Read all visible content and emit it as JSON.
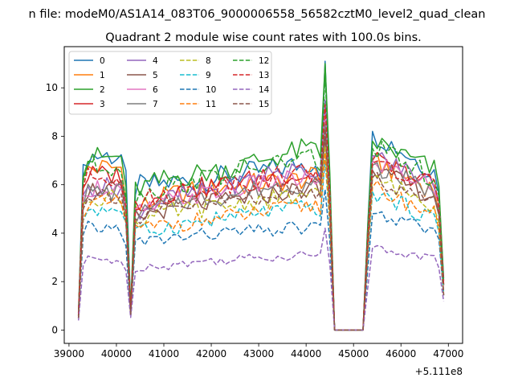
{
  "chart_data": {
    "type": "line",
    "suptitle": "n file: modeM0/AS1A14_083T06_9000006558_56582cztM0_level2_quad_clean",
    "title": "Quadrant 2 module wise count rates with 100.0s bins.",
    "xlabel": "",
    "ylabel": "",
    "x_offset_label": "+5.111e8",
    "xlim": [
      38900,
      47300
    ],
    "ylim": [
      -0.55,
      11.7
    ],
    "x_ticks": [
      39000,
      40000,
      41000,
      42000,
      43000,
      44000,
      45000,
      46000,
      47000
    ],
    "y_ticks": [
      0,
      2,
      4,
      6,
      8,
      10
    ],
    "grid": false,
    "legend": {
      "placement": "top-left",
      "columns": 4
    },
    "series": [
      {
        "name": "0",
        "color": "#1f77b4",
        "dash": "solid",
        "base": [
          0.7,
          7.2,
          5.9,
          6.1,
          6.3,
          6.6,
          7.0,
          11.1,
          0,
          8.2,
          6.4
        ]
      },
      {
        "name": "1",
        "color": "#ff7f0e",
        "dash": "solid",
        "base": [
          0.6,
          6.7,
          5.0,
          5.6,
          5.9,
          6.1,
          6.3,
          9.2,
          0,
          7.0,
          5.7
        ]
      },
      {
        "name": "2",
        "color": "#2ca02c",
        "dash": "solid",
        "base": [
          0.7,
          7.1,
          5.8,
          6.3,
          6.6,
          7.1,
          7.6,
          11.0,
          0,
          7.8,
          6.5
        ]
      },
      {
        "name": "3",
        "color": "#d62728",
        "dash": "solid",
        "base": [
          0.6,
          6.4,
          5.2,
          5.7,
          6.0,
          6.3,
          6.4,
          9.0,
          0,
          7.0,
          5.9
        ]
      },
      {
        "name": "4",
        "color": "#9467bd",
        "dash": "solid",
        "base": [
          0.5,
          5.9,
          4.9,
          5.5,
          5.8,
          6.5,
          6.6,
          9.5,
          0,
          7.2,
          6.0
        ]
      },
      {
        "name": "5",
        "color": "#8c564b",
        "dash": "solid",
        "base": [
          0.6,
          5.8,
          4.6,
          5.1,
          5.3,
          5.6,
          5.9,
          8.0,
          0,
          6.6,
          5.4
        ]
      },
      {
        "name": "6",
        "color": "#e377c2",
        "dash": "solid",
        "base": [
          0.6,
          5.9,
          4.8,
          5.4,
          5.7,
          6.1,
          6.3,
          8.9,
          0,
          7.0,
          5.8
        ]
      },
      {
        "name": "7",
        "color": "#7f7f7f",
        "dash": "solid",
        "base": [
          0.5,
          5.7,
          4.7,
          5.3,
          5.5,
          5.9,
          6.1,
          8.5,
          0,
          6.8,
          5.6
        ]
      },
      {
        "name": "8",
        "color": "#bcbd22",
        "dash": "dashed",
        "base": [
          0.5,
          5.5,
          4.5,
          4.9,
          5.1,
          5.4,
          5.6,
          7.6,
          0,
          6.3,
          5.1
        ]
      },
      {
        "name": "9",
        "color": "#17becf",
        "dash": "dashed",
        "base": [
          0.5,
          5.0,
          4.0,
          4.3,
          4.6,
          4.9,
          5.1,
          7.0,
          0,
          5.7,
          4.5
        ]
      },
      {
        "name": "10",
        "color": "#1f77b4",
        "dash": "dashed",
        "base": [
          0.5,
          4.2,
          3.6,
          3.8,
          4.0,
          4.1,
          4.3,
          5.8,
          0,
          4.8,
          4.0
        ]
      },
      {
        "name": "11",
        "color": "#ff7f0e",
        "dash": "dashed",
        "base": [
          0.5,
          5.2,
          4.1,
          4.4,
          4.6,
          4.9,
          5.2,
          7.3,
          0,
          5.9,
          4.7
        ]
      },
      {
        "name": "12",
        "color": "#2ca02c",
        "dash": "dashed",
        "base": [
          0.6,
          6.8,
          5.6,
          6.0,
          6.4,
          6.8,
          7.2,
          10.5,
          0,
          7.5,
          6.2
        ]
      },
      {
        "name": "13",
        "color": "#d62728",
        "dash": "dashed",
        "base": [
          0.6,
          6.3,
          5.2,
          5.7,
          6.0,
          6.3,
          6.6,
          9.3,
          0,
          6.9,
          5.8
        ]
      },
      {
        "name": "14",
        "color": "#9467bd",
        "dash": "dashed",
        "base": [
          0.4,
          2.9,
          2.6,
          2.7,
          2.9,
          3.0,
          3.2,
          4.2,
          0,
          3.4,
          2.9
        ]
      },
      {
        "name": "15",
        "color": "#8c564b",
        "dash": "dashed",
        "base": [
          0.5,
          5.6,
          4.5,
          5.0,
          5.3,
          5.6,
          5.8,
          8.3,
          0,
          6.3,
          5.2
        ]
      }
    ]
  }
}
